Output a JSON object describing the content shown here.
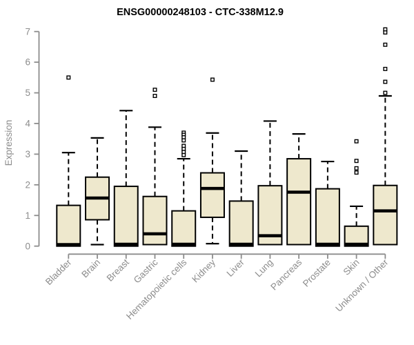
{
  "chart_data": {
    "type": "boxplot",
    "title": "ENSG00000248103 - CTC-338M12.9",
    "xlabel": "",
    "ylabel": "Expression",
    "ylim": [
      0,
      7
    ],
    "yticks": [
      0,
      1,
      2,
      3,
      4,
      5,
      6,
      7
    ],
    "grid": false,
    "legend": null,
    "categories": [
      "Bladder",
      "Brain",
      "Breast",
      "Gastric",
      "Hematopoietic cells",
      "Kidney",
      "Liver",
      "Lung",
      "Pancreas",
      "Prostate",
      "Skin",
      "Unknown / Other"
    ],
    "boxes": [
      {
        "category": "Bladder",
        "whisker_low": 0,
        "q1": 0,
        "median": 0.05,
        "q3": 1.33,
        "whisker_high": 3.05,
        "outliers": [
          5.5
        ]
      },
      {
        "category": "Brain",
        "whisker_low": 0.05,
        "q1": 0.86,
        "median": 1.57,
        "q3": 2.25,
        "whisker_high": 3.53,
        "outliers": []
      },
      {
        "category": "Breast",
        "whisker_low": 0,
        "q1": 0,
        "median": 0.06,
        "q3": 1.95,
        "whisker_high": 4.42,
        "outliers": []
      },
      {
        "category": "Gastric",
        "whisker_low": 0.05,
        "q1": 0.05,
        "median": 0.4,
        "q3": 1.62,
        "whisker_high": 3.88,
        "outliers": [
          5.1,
          4.9
        ]
      },
      {
        "category": "Hematopoietic cells",
        "whisker_low": 0,
        "q1": 0,
        "median": 0.06,
        "q3": 1.15,
        "whisker_high": 2.85,
        "outliers": [
          3.7,
          3.63,
          3.55,
          3.45,
          3.27,
          3.17,
          3.07,
          2.97
        ]
      },
      {
        "category": "Kidney",
        "whisker_low": 0.08,
        "q1": 0.94,
        "median": 1.88,
        "q3": 2.39,
        "whisker_high": 3.69,
        "outliers": [
          5.43
        ]
      },
      {
        "category": "Liver",
        "whisker_low": 0,
        "q1": 0,
        "median": 0.06,
        "q3": 1.47,
        "whisker_high": 3.1,
        "outliers": []
      },
      {
        "category": "Lung",
        "whisker_low": 0.05,
        "q1": 0.05,
        "median": 0.34,
        "q3": 1.97,
        "whisker_high": 4.08,
        "outliers": []
      },
      {
        "category": "Pancreas",
        "whisker_low": 0.05,
        "q1": 0.05,
        "median": 1.76,
        "q3": 2.85,
        "whisker_high": 3.66,
        "outliers": []
      },
      {
        "category": "Prostate",
        "whisker_low": 0,
        "q1": 0,
        "median": 0.06,
        "q3": 1.87,
        "whisker_high": 2.76,
        "outliers": []
      },
      {
        "category": "Skin",
        "whisker_low": 0,
        "q1": 0,
        "median": 0.06,
        "q3": 0.65,
        "whisker_high": 1.3,
        "outliers": [
          3.42,
          2.78,
          2.54,
          2.4
        ]
      },
      {
        "category": "Unknown / Other",
        "whisker_low": 0.05,
        "q1": 0.05,
        "median": 1.15,
        "q3": 1.98,
        "whisker_high": 4.9,
        "outliers": [
          7.07,
          6.97,
          6.57,
          5.78,
          5.36,
          5.0
        ]
      }
    ],
    "colors": {
      "box_fill": "#EEE8CD",
      "box_border": "#000000",
      "median": "#000000",
      "outlier": "#000000",
      "axis": "#8C8C8C",
      "tick_label": "#8C8C8C",
      "title": "#000000",
      "background": "#FFFFFF"
    }
  }
}
